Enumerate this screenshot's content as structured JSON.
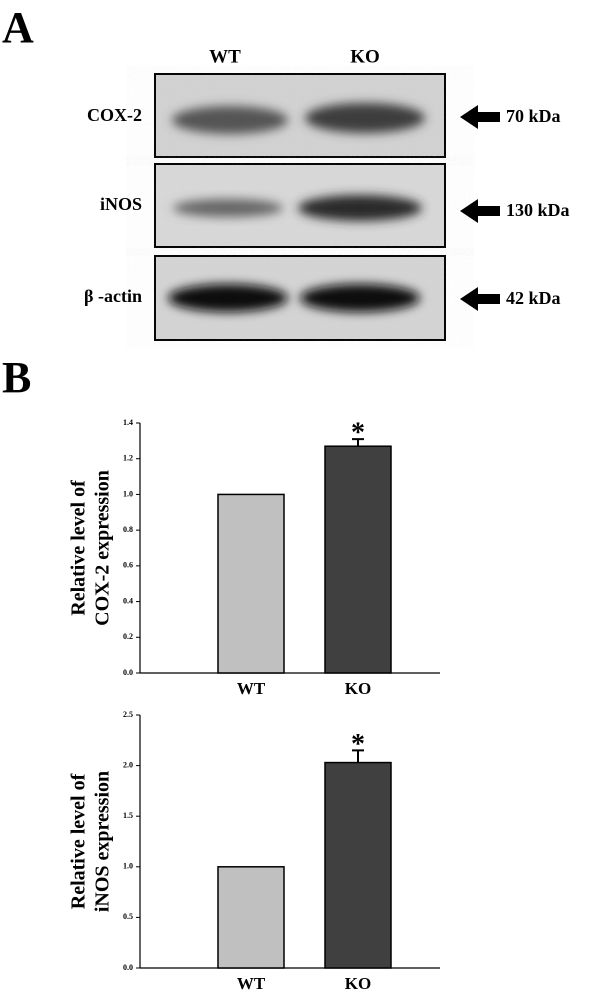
{
  "panel_a": {
    "label": "A",
    "lanes": [
      "WT",
      "KO"
    ],
    "rows": [
      {
        "label": "COX-2",
        "size": "70 kDa"
      },
      {
        "label": "iNOS",
        "size": "130 kDa"
      },
      {
        "label": "β -actin",
        "size": "42 kDa"
      }
    ]
  },
  "panel_b": {
    "label": "B"
  },
  "chart_data": [
    {
      "type": "bar",
      "ylabel": [
        "Relative level of",
        "COX-2 expression"
      ],
      "categories": [
        "WT",
        "KO"
      ],
      "values": [
        1.0,
        1.27
      ],
      "errors": [
        null,
        0.04
      ],
      "significance": [
        null,
        "*"
      ],
      "colors": [
        "#c0c0c0",
        "#404040"
      ],
      "ylim": [
        0,
        1.4
      ],
      "yticks": [
        {
          "value": 0,
          "label": "0.0"
        },
        {
          "value": 0.2,
          "label": "0.2"
        },
        {
          "value": 0.4,
          "label": "0.4"
        },
        {
          "value": 0.6,
          "label": "0.6"
        },
        {
          "value": 0.8,
          "label": "0.8"
        },
        {
          "value": 1.0,
          "label": "1.0"
        },
        {
          "value": 1.2,
          "label": "1.2"
        },
        {
          "value": 1.4,
          "label": "1.4"
        }
      ]
    },
    {
      "type": "bar",
      "ylabel": [
        "Relative level of",
        "iNOS expression"
      ],
      "categories": [
        "WT",
        "KO"
      ],
      "values": [
        1.0,
        2.03
      ],
      "errors": [
        null,
        0.12
      ],
      "significance": [
        null,
        "*"
      ],
      "colors": [
        "#c0c0c0",
        "#404040"
      ],
      "ylim": [
        0,
        2.5
      ],
      "yticks": [
        {
          "value": 0,
          "label": "0.0"
        },
        {
          "value": 0.5,
          "label": "0.5"
        },
        {
          "value": 1.0,
          "label": "1.0"
        },
        {
          "value": 1.5,
          "label": "1.5"
        },
        {
          "value": 2.0,
          "label": "2.0"
        },
        {
          "value": 2.5,
          "label": "2.5"
        }
      ]
    }
  ]
}
